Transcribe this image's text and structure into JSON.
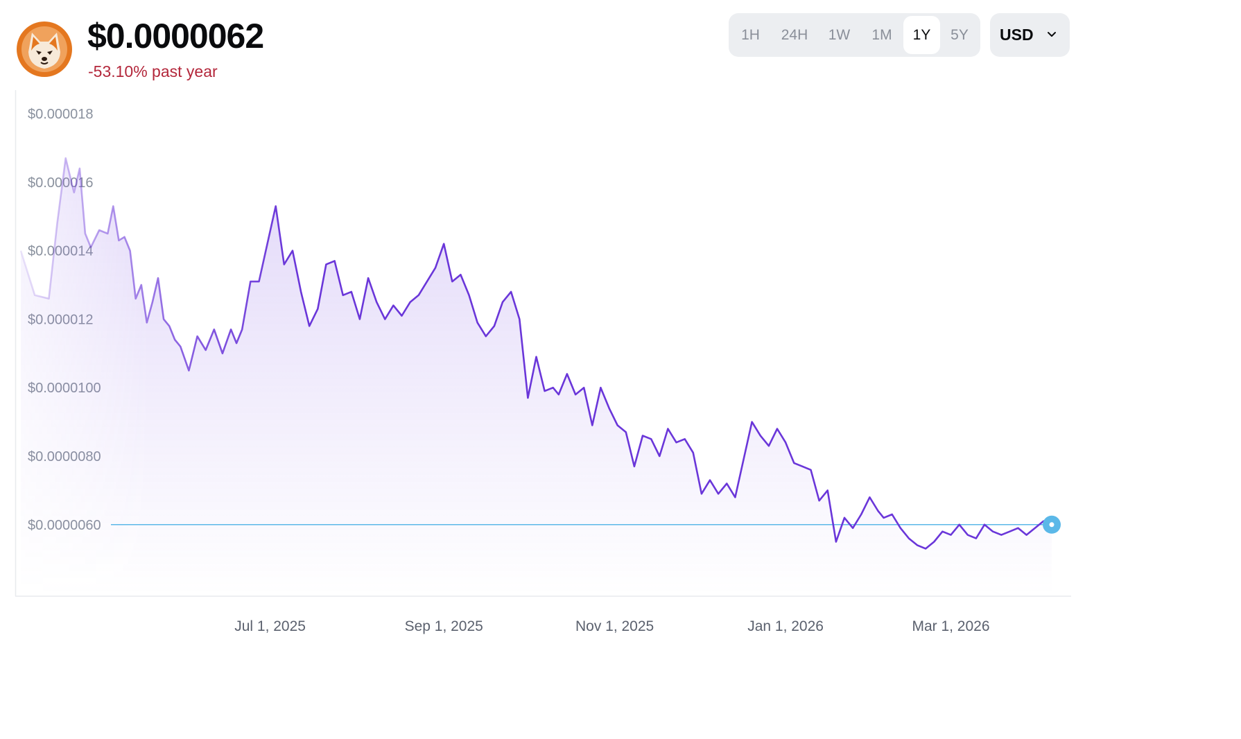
{
  "header": {
    "price": "$0.0000062",
    "change": "-53.10% past year"
  },
  "coin_logo_icon": "shiba-inu-logo-icon",
  "time_ranges": [
    {
      "label": "1H",
      "active": false
    },
    {
      "label": "24H",
      "active": false
    },
    {
      "label": "1W",
      "active": false
    },
    {
      "label": "1M",
      "active": false
    },
    {
      "label": "1Y",
      "active": true
    },
    {
      "label": "5Y",
      "active": false
    }
  ],
  "currency": {
    "label": "USD",
    "icon": "chevron-down-icon"
  },
  "colors": {
    "line": "#6a36d9",
    "reference": "#5bb8e8",
    "negative": "#b3273b",
    "brand": "#e4771f"
  },
  "chart_data": {
    "type": "area",
    "title": "",
    "xlabel": "",
    "ylabel": "",
    "y_ticks": [
      "$0.000018",
      "$0.000016",
      "$0.000014",
      "$0.000012",
      "$0.0000100",
      "$0.0000080",
      "$0.0000060"
    ],
    "x_ticks": [
      "Jul 1, 2025",
      "Sep 1, 2025",
      "Nov 1, 2025",
      "Jan 1, 2026",
      "Mar 1, 2026"
    ],
    "ylim": [
      4.7e-06,
      1.9e-05
    ],
    "reference_value": 6e-06,
    "current_value": 6.2e-06,
    "grid": false,
    "series": [
      {
        "x": [
          "2025-04-03",
          "2025-04-08",
          "2025-04-13",
          "2025-04-16",
          "2025-04-19",
          "2025-04-22",
          "2025-04-24",
          "2025-04-26",
          "2025-04-28",
          "2025-05-01",
          "2025-05-04",
          "2025-05-06",
          "2025-05-08",
          "2025-05-10",
          "2025-05-12",
          "2025-05-14",
          "2025-05-16",
          "2025-05-18",
          "2025-05-20",
          "2025-05-22",
          "2025-05-24",
          "2025-05-26",
          "2025-05-28",
          "2025-05-30",
          "2025-06-02",
          "2025-06-05",
          "2025-06-08",
          "2025-06-11",
          "2025-06-14",
          "2025-06-17",
          "2025-06-19",
          "2025-06-21",
          "2025-06-24",
          "2025-06-27",
          "2025-06-30",
          "2025-07-03",
          "2025-07-06",
          "2025-07-09",
          "2025-07-12",
          "2025-07-15",
          "2025-07-18",
          "2025-07-21",
          "2025-07-24",
          "2025-07-27",
          "2025-07-30",
          "2025-08-02",
          "2025-08-05",
          "2025-08-08",
          "2025-08-11",
          "2025-08-14",
          "2025-08-17",
          "2025-08-20",
          "2025-08-23",
          "2025-08-26",
          "2025-08-29",
          "2025-09-01",
          "2025-09-04",
          "2025-09-07",
          "2025-09-10",
          "2025-09-13",
          "2025-09-16",
          "2025-09-19",
          "2025-09-22",
          "2025-09-25",
          "2025-09-28",
          "2025-10-01",
          "2025-10-04",
          "2025-10-07",
          "2025-10-10",
          "2025-10-12",
          "2025-10-15",
          "2025-10-18",
          "2025-10-21",
          "2025-10-24",
          "2025-10-27",
          "2025-10-30",
          "2025-11-02",
          "2025-11-05",
          "2025-11-08",
          "2025-11-11",
          "2025-11-14",
          "2025-11-17",
          "2025-11-20",
          "2025-11-23",
          "2025-11-26",
          "2025-11-29",
          "2025-12-02",
          "2025-12-05",
          "2025-12-08",
          "2025-12-11",
          "2025-12-14",
          "2025-12-17",
          "2025-12-20",
          "2025-12-23",
          "2025-12-26",
          "2025-12-29",
          "2026-01-01",
          "2026-01-04",
          "2026-01-07",
          "2026-01-10",
          "2026-01-13",
          "2026-01-16",
          "2026-01-19",
          "2026-01-22",
          "2026-01-25",
          "2026-01-28",
          "2026-01-31",
          "2026-02-03",
          "2026-02-05",
          "2026-02-08",
          "2026-02-11",
          "2026-02-14",
          "2026-02-17",
          "2026-02-20",
          "2026-02-23",
          "2026-02-26",
          "2026-03-01",
          "2026-03-04",
          "2026-03-07",
          "2026-03-10",
          "2026-03-13",
          "2026-03-16",
          "2026-03-19",
          "2026-03-22",
          "2026-03-25",
          "2026-03-28",
          "2026-03-31",
          "2026-04-03",
          "2026-04-06"
        ],
        "y": [
          1.4e-05,
          1.27e-05,
          1.26e-05,
          1.48e-05,
          1.67e-05,
          1.57e-05,
          1.64e-05,
          1.45e-05,
          1.41e-05,
          1.46e-05,
          1.45e-05,
          1.53e-05,
          1.43e-05,
          1.44e-05,
          1.4e-05,
          1.26e-05,
          1.3e-05,
          1.19e-05,
          1.25e-05,
          1.32e-05,
          1.2e-05,
          1.18e-05,
          1.14e-05,
          1.12e-05,
          1.05e-05,
          1.15e-05,
          1.11e-05,
          1.17e-05,
          1.1e-05,
          1.17e-05,
          1.13e-05,
          1.17e-05,
          1.31e-05,
          1.31e-05,
          1.42e-05,
          1.53e-05,
          1.36e-05,
          1.4e-05,
          1.28e-05,
          1.18e-05,
          1.23e-05,
          1.36e-05,
          1.37e-05,
          1.27e-05,
          1.28e-05,
          1.2e-05,
          1.32e-05,
          1.25e-05,
          1.2e-05,
          1.24e-05,
          1.21e-05,
          1.25e-05,
          1.27e-05,
          1.31e-05,
          1.35e-05,
          1.42e-05,
          1.31e-05,
          1.33e-05,
          1.27e-05,
          1.19e-05,
          1.15e-05,
          1.18e-05,
          1.25e-05,
          1.28e-05,
          1.2e-05,
          9.7e-06,
          1.09e-05,
          9.9e-06,
          1e-05,
          9.8e-06,
          1.04e-05,
          9.8e-06,
          1e-05,
          8.9e-06,
          1e-05,
          9.4e-06,
          8.9e-06,
          8.7e-06,
          7.7e-06,
          8.6e-06,
          8.5e-06,
          8e-06,
          8.8e-06,
          8.4e-06,
          8.5e-06,
          8.1e-06,
          6.9e-06,
          7.3e-06,
          6.9e-06,
          7.2e-06,
          6.8e-06,
          7.9e-06,
          9e-06,
          8.6e-06,
          8.3e-06,
          8.8e-06,
          8.4e-06,
          7.8e-06,
          7.7e-06,
          7.6e-06,
          6.7e-06,
          7e-06,
          5.5e-06,
          6.2e-06,
          5.9e-06,
          6.3e-06,
          6.8e-06,
          6.4e-06,
          6.2e-06,
          6.3e-06,
          5.9e-06,
          5.6e-06,
          5.4e-06,
          5.3e-06,
          5.5e-06,
          5.8e-06,
          5.7e-06,
          6e-06,
          5.7e-06,
          5.6e-06,
          6e-06,
          5.8e-06,
          5.7e-06,
          5.8e-06,
          5.9e-06,
          5.7e-06,
          5.9e-06,
          6.1e-06,
          6.2e-06
        ]
      }
    ]
  }
}
